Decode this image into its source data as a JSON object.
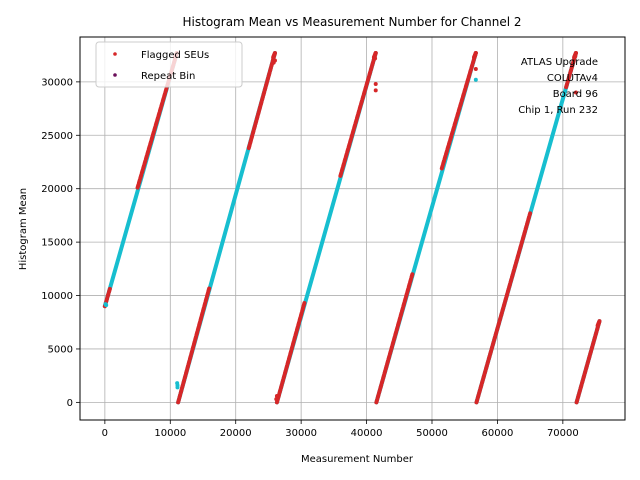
{
  "chart_data": {
    "type": "scatter",
    "title": "Histogram Mean vs Measurement Number for Channel 2",
    "xlabel": "Measurement Number",
    "ylabel": "Histogram Mean",
    "xlim": [
      -3800,
      79500
    ],
    "ylim": [
      -1650,
      34200
    ],
    "xticks": [
      0,
      10000,
      20000,
      30000,
      40000,
      50000,
      60000,
      70000
    ],
    "xtick_labels": [
      "0",
      "10000",
      "20000",
      "30000",
      "40000",
      "50000",
      "60000",
      "70000"
    ],
    "yticks": [
      0,
      5000,
      10000,
      15000,
      20000,
      25000,
      30000
    ],
    "ytick_labels": [
      "0",
      "5000",
      "10000",
      "15000",
      "20000",
      "25000",
      "30000"
    ],
    "grid": true,
    "legend_position": "top-left",
    "legend": [
      {
        "label": "Flagged SEUs",
        "color": "#d62728"
      },
      {
        "label": "Repeat Bin",
        "color": "#6b0f5a"
      }
    ],
    "annotation_lines": [
      "ATLAS Upgrade",
      "COLUTAv4",
      "Board 96",
      "Chip 1, Run 232"
    ],
    "colors": {
      "main": "#17becf",
      "flagged": "#d62728"
    },
    "ramps": [
      {
        "x": [
          0,
          11000
        ],
        "y": [
          9000,
          32700
        ]
      },
      {
        "x": [
          11200,
          26000
        ],
        "y": [
          0,
          32700
        ]
      },
      {
        "x": [
          26300,
          41400
        ],
        "y": [
          0,
          32700
        ]
      },
      {
        "x": [
          41500,
          56700
        ],
        "y": [
          0,
          32700
        ]
      },
      {
        "x": [
          56800,
          72000
        ],
        "y": [
          0,
          32700
        ]
      },
      {
        "x": [
          72100,
          75600
        ],
        "y": [
          0,
          7600
        ]
      }
    ],
    "flagged_segments": [
      {
        "x": [
          0,
          800
        ],
        "y": [
          9000,
          10700
        ]
      },
      {
        "x": [
          5000,
          11000
        ],
        "y": [
          20100,
          32700
        ]
      },
      {
        "x": [
          11200,
          16000
        ],
        "y": [
          0,
          10800
        ]
      },
      {
        "x": [
          22000,
          26000
        ],
        "y": [
          23800,
          32700
        ]
      },
      {
        "x": [
          26300,
          30500
        ],
        "y": [
          0,
          9300
        ]
      },
      {
        "x": [
          36000,
          41400
        ],
        "y": [
          21200,
          32700
        ]
      },
      {
        "x": [
          41500,
          47000
        ],
        "y": [
          0,
          12000
        ]
      },
      {
        "x": [
          51500,
          56700
        ],
        "y": [
          21900,
          32700
        ]
      },
      {
        "x": [
          56800,
          65000
        ],
        "y": [
          0,
          17700
        ]
      },
      {
        "x": [
          70500,
          72000
        ],
        "y": [
          29500,
          32700
        ]
      },
      {
        "x": [
          72100,
          75600
        ],
        "y": [
          0,
          7600
        ]
      }
    ],
    "scattered_points": [
      {
        "x": 26000,
        "y": 32000,
        "c": "flagged"
      },
      {
        "x": 25800,
        "y": 31800,
        "c": "flagged"
      },
      {
        "x": 26300,
        "y": 600,
        "c": "flagged"
      },
      {
        "x": 26200,
        "y": 300,
        "c": "flagged"
      },
      {
        "x": 41400,
        "y": 29800,
        "c": "flagged"
      },
      {
        "x": 41400,
        "y": 29200,
        "c": "flagged"
      },
      {
        "x": 41300,
        "y": 32200,
        "c": "flagged"
      },
      {
        "x": 56700,
        "y": 31200,
        "c": "flagged"
      },
      {
        "x": 56700,
        "y": 30200,
        "c": "main"
      },
      {
        "x": 56600,
        "y": 32500,
        "c": "flagged"
      },
      {
        "x": 72000,
        "y": 29000,
        "c": "flagged"
      },
      {
        "x": 71900,
        "y": 32400,
        "c": "flagged"
      },
      {
        "x": 11100,
        "y": 1600,
        "c": "main"
      },
      {
        "x": 11100,
        "y": 1400,
        "c": "main"
      },
      {
        "x": 11050,
        "y": 1800,
        "c": "main"
      },
      {
        "x": 200,
        "y": 9100,
        "c": "main"
      },
      {
        "x": 100,
        "y": 9200,
        "c": "main"
      }
    ]
  }
}
